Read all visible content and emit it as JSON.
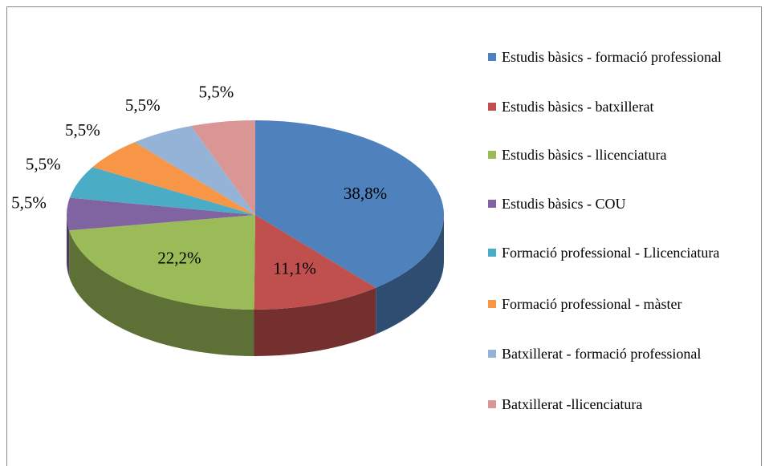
{
  "chart_data": {
    "type": "pie3d",
    "categories": [
      "Estudis bàsics - formació professional",
      "Estudis bàsics - batxillerat",
      "Estudis bàsics - llicenciatura",
      "Estudis bàsics - COU",
      "Formació professional - Llicenciatura",
      "Formació professional - màster",
      "Batxillerat - formació professional",
      "Batxillerat -llicenciatura"
    ],
    "values": [
      38.8,
      11.1,
      22.2,
      5.5,
      5.5,
      5.5,
      5.5,
      5.5
    ],
    "value_labels": [
      "38,8%",
      "11,1%",
      "22,2%",
      "5,5%",
      "5,5%",
      "5,5%",
      "5,5%",
      "5,5%"
    ],
    "colors": [
      "#4f81bd",
      "#c0504d",
      "#9bbb59",
      "#8064a2",
      "#4bacc6",
      "#f79646",
      "#95b3d7",
      "#d99694"
    ],
    "legend": "right"
  }
}
